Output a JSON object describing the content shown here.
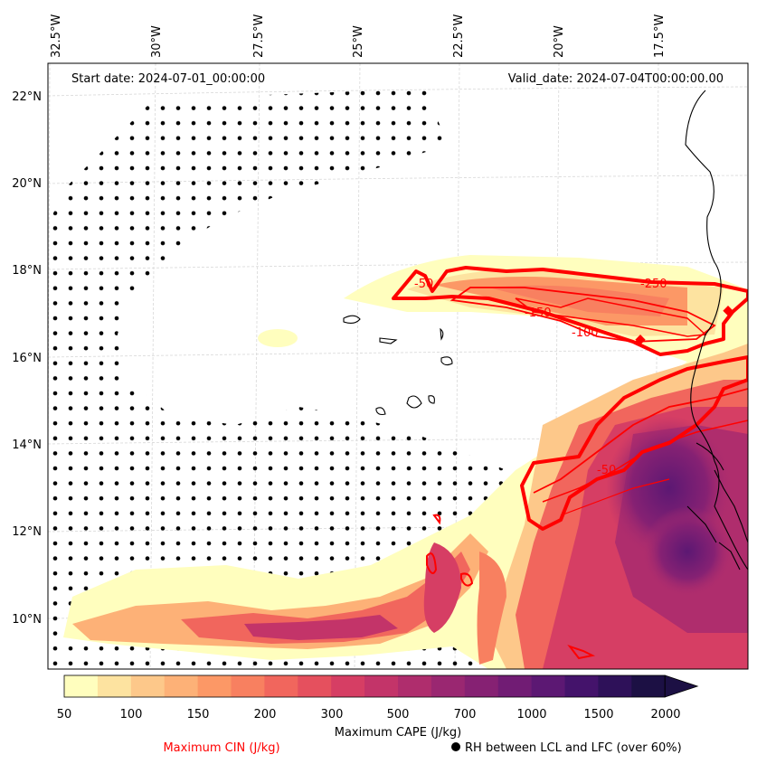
{
  "header": {
    "start_date": "Start date: 2024-07-01_00:00:00",
    "valid_date": "Valid_date: 2024-07-04T00:00:00.00"
  },
  "axes": {
    "lon_labels": [
      "32.5°W",
      "30°W",
      "27.5°W",
      "25°W",
      "22.5°W",
      "20°W",
      "17.5°W"
    ],
    "lat_labels": [
      "22°N",
      "20°N",
      "18°N",
      "16°N",
      "14°N",
      "12°N",
      "10°N"
    ]
  },
  "colorbar": {
    "ticks": [
      "50",
      "100",
      "150",
      "200",
      "300",
      "500",
      "700",
      "1000",
      "1500",
      "2000"
    ],
    "label": "Maximum CAPE (J/kg)",
    "colors": [
      "#fffebe",
      "#fde3a0",
      "#fdc88a",
      "#fdb177",
      "#fc9866",
      "#f88060",
      "#f1665d",
      "#e5505e",
      "#d63e64",
      "#c33469",
      "#af2d6d",
      "#9a2771",
      "#862173",
      "#711c74",
      "#5c1873",
      "#44136b",
      "#2e1159",
      "#1c1044"
    ]
  },
  "legend": {
    "cin_label": "Maximum CIN (J/kg)",
    "rh_label": "RH between LCL and LFC (over 60%)",
    "cin_color": "#ff0000"
  },
  "contour_labels": [
    "-250",
    "-150",
    "-100",
    "-50",
    "-50"
  ]
}
